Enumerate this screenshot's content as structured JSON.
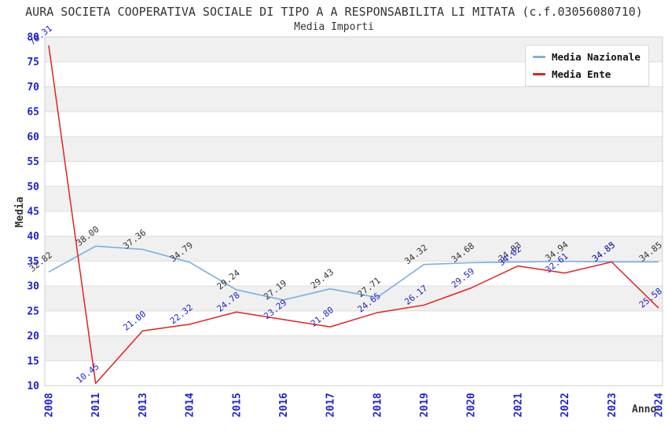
{
  "chart": {
    "title": "AURA SOCIETA COOPERATIVA SOCIALE DI TIPO A A RESPONSABILITA LI MITATA (c.f.03056080710)",
    "subtitle": "Media Importi",
    "xlabel": "Anno",
    "ylabel": "Media"
  },
  "colors": {
    "nazionale_line": "#7eb2e4",
    "ente_line": "#e62020",
    "tick_label": "#2222cc",
    "nazionale_point_label": "#333333",
    "ente_point_label": "#2222cc",
    "band_fill": "#f0f0f0",
    "grid_line": "#dcdcdc",
    "plot_border": "#cfcfcf"
  },
  "chart_data": {
    "type": "line",
    "title": "Media Importi",
    "xlabel": "Anno",
    "ylabel": "Media",
    "categories": [
      "2008",
      "2011",
      "2013",
      "2014",
      "2015",
      "2016",
      "2017",
      "2018",
      "2019",
      "2020",
      "2021",
      "2022",
      "2023",
      "2024"
    ],
    "series": [
      {
        "name": "Media Nazionale",
        "color": "#7eb2e4",
        "label_color": "#333333",
        "values": [
          32.82,
          38.0,
          37.36,
          34.79,
          29.24,
          27.19,
          29.43,
          27.71,
          34.32,
          34.68,
          34.83,
          34.94,
          34.85,
          34.85
        ]
      },
      {
        "name": "Media Ente",
        "color": "#e62020",
        "label_color": "#2222cc",
        "values": [
          78.31,
          10.45,
          21.0,
          22.32,
          24.78,
          23.29,
          21.8,
          24.65,
          26.17,
          29.59,
          34.02,
          32.61,
          34.83,
          25.58
        ]
      }
    ],
    "ylim": [
      10,
      80
    ],
    "y_ticks": [
      10,
      15,
      20,
      25,
      30,
      35,
      40,
      45,
      50,
      55,
      60,
      65,
      70,
      75,
      80
    ],
    "grid": "horizontal-bands",
    "legend_position": "top-right"
  }
}
